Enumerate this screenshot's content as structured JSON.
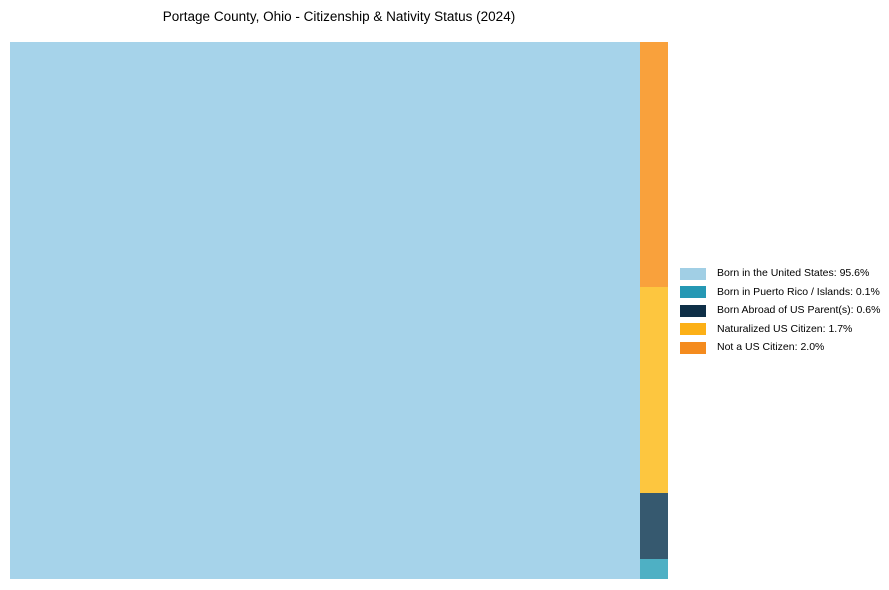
{
  "title": "Portage County, Ohio - Citizenship & Nativity Status (2024)",
  "chart_data": {
    "type": "treemap",
    "title": "Portage County, Ohio - Citizenship & Nativity Status (2024)",
    "categories": [
      "Born in the United States",
      "Born in Puerto Rico / Islands",
      "Born Abroad of US Parent(s)",
      "Naturalized US Citizen",
      "Not a US Citizen"
    ],
    "values": [
      95.6,
      0.1,
      0.6,
      1.7,
      2.0
    ],
    "unit": "%",
    "legend_position": "right",
    "grid": false
  },
  "treemap": {
    "blocks": [
      {
        "name": "Born in the United States",
        "value_pct": 95.6,
        "color": "#A6D3EA"
      },
      {
        "name": "Not a US Citizen",
        "value_pct": 2.0,
        "color": "#F9A13C"
      },
      {
        "name": "Naturalized US Citizen",
        "value_pct": 1.7,
        "color": "#FDC63F"
      },
      {
        "name": "Born Abroad of US Parent(s)",
        "value_pct": 0.6,
        "color": "#36596F"
      },
      {
        "name": "Born in Puerto Rico / Islands",
        "value_pct": 0.1,
        "color": "#4EB0C4"
      }
    ]
  },
  "legend": {
    "items": [
      {
        "label": "Born in the United States: 95.6%",
        "color": "#A1CFE5"
      },
      {
        "label": "Born in Puerto Rico / Islands: 0.1%",
        "color": "#2598B4"
      },
      {
        "label": "Born Abroad of US Parent(s): 0.6%",
        "color": "#0E2F47"
      },
      {
        "label": "Naturalized US Citizen: 1.7%",
        "color": "#FCB017"
      },
      {
        "label": "Not a US Citizen: 2.0%",
        "color": "#F48B1E"
      }
    ]
  }
}
